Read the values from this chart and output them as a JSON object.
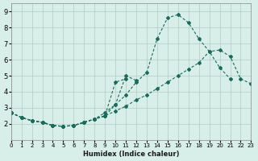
{
  "xlabel": "Humidex (Indice chaleur)",
  "ylabel": "",
  "background_color": "#d8eee8",
  "grid_color": "#b0ccc4",
  "line_color": "#1a6b5a",
  "xlim": [
    0,
    23
  ],
  "ylim": [
    1,
    9.5
  ],
  "xticks": [
    0,
    1,
    2,
    3,
    4,
    5,
    6,
    7,
    8,
    9,
    10,
    11,
    12,
    13,
    14,
    15,
    16,
    17,
    18,
    19,
    20,
    21,
    22,
    23
  ],
  "yticks": [
    2,
    3,
    4,
    5,
    6,
    7,
    8,
    9
  ],
  "lines": [
    {
      "x": [
        0,
        1,
        2,
        3,
        4,
        5,
        6,
        7,
        8,
        9,
        10,
        11,
        12,
        13,
        14,
        15,
        16,
        17,
        18,
        19,
        20,
        21,
        22,
        23
      ],
      "y": [
        2.7,
        2.4,
        2.2,
        2.1,
        1.9,
        1.85,
        1.9,
        2.1,
        2.3,
        2.7,
        3.2,
        3.8,
        4.6,
        5.2,
        7.3,
        8.6,
        8.8,
        8.3,
        7.3,
        6.5,
        5.5,
        4.8,
        null,
        null
      ]
    },
    {
      "x": [
        0,
        1,
        2,
        3,
        4,
        5,
        6,
        7,
        8,
        9,
        10,
        11,
        12,
        13,
        14,
        15,
        16,
        17,
        18,
        19,
        20,
        21,
        22,
        23
      ],
      "y": [
        2.7,
        2.4,
        2.2,
        2.1,
        1.9,
        1.85,
        1.9,
        2.1,
        2.3,
        2.5,
        2.8,
        3.1,
        3.5,
        3.8,
        4.2,
        4.6,
        5.0,
        5.4,
        5.8,
        6.5,
        6.6,
        6.2,
        4.8,
        4.5
      ]
    },
    {
      "x": [
        0,
        1,
        2,
        3,
        4,
        5,
        6,
        7,
        8,
        9,
        10,
        11,
        12,
        13,
        14,
        15,
        16,
        17,
        18,
        19,
        20,
        21,
        22,
        23
      ],
      "y": [
        2.7,
        2.4,
        2.2,
        2.1,
        1.9,
        1.85,
        1.9,
        2.1,
        2.3,
        2.5,
        3.2,
        5.0,
        4.7,
        null,
        null,
        null,
        null,
        null,
        null,
        null,
        null,
        null,
        null,
        null
      ]
    },
    {
      "x": [
        0,
        1,
        2,
        3,
        4,
        5,
        6,
        7,
        8,
        9,
        10,
        11,
        12,
        13,
        14,
        15,
        16,
        17,
        18,
        19,
        20,
        21,
        22,
        23
      ],
      "y": [
        2.7,
        2.4,
        2.2,
        2.1,
        1.9,
        1.85,
        1.9,
        2.1,
        2.3,
        2.5,
        4.6,
        4.8,
        null,
        null,
        null,
        null,
        null,
        null,
        null,
        null,
        null,
        null,
        null,
        null
      ]
    }
  ]
}
